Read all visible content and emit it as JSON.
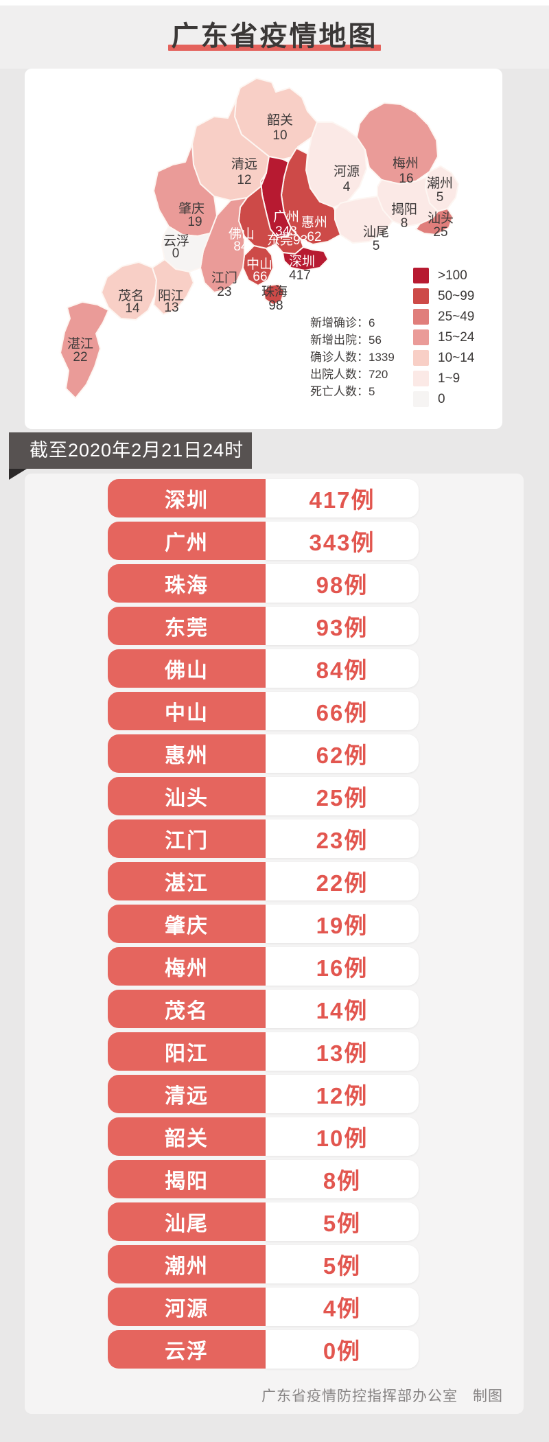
{
  "header": {
    "title": "广东省疫情地图",
    "accent_color": "#e4625c",
    "title_color": "#3b3837"
  },
  "map": {
    "band_colors": {
      "gt100": "#b71a31",
      "b50_99": "#cd4a48",
      "b25_49": "#e07e7b",
      "b15_24": "#ea9b98",
      "b10_14": "#f8cfc6",
      "b1_9": "#fbe9e6",
      "b0": "#f6f4f3"
    },
    "regions": [
      {
        "name": "韶关",
        "value": "10",
        "band": "b10_14"
      },
      {
        "name": "清远",
        "value": "12",
        "band": "b10_14"
      },
      {
        "name": "河源",
        "value": "4",
        "band": "b1_9"
      },
      {
        "name": "梅州",
        "value": "16",
        "band": "b15_24"
      },
      {
        "name": "潮州",
        "value": "5",
        "band": "b1_9"
      },
      {
        "name": "揭阳",
        "value": "8",
        "band": "b1_9"
      },
      {
        "name": "汕头",
        "value": "25",
        "band": "b25_49"
      },
      {
        "name": "汕尾",
        "value": "5",
        "band": "b1_9"
      },
      {
        "name": "惠州",
        "value": "62",
        "band": "b50_99"
      },
      {
        "name": "广州",
        "value": "343",
        "band": "gt100"
      },
      {
        "name": "东莞",
        "value": "93",
        "band": "b50_99"
      },
      {
        "name": "深圳",
        "value": "417",
        "band": "gt100"
      },
      {
        "name": "中山",
        "value": "66",
        "band": "b50_99"
      },
      {
        "name": "珠海",
        "value": "98",
        "band": "b50_99"
      },
      {
        "name": "佛山",
        "value": "84",
        "band": "b50_99"
      },
      {
        "name": "江门",
        "value": "23",
        "band": "b15_24"
      },
      {
        "name": "肇庆",
        "value": "19",
        "band": "b15_24"
      },
      {
        "name": "云浮",
        "value": "0",
        "band": "b0"
      },
      {
        "name": "茂名",
        "value": "14",
        "band": "b10_14"
      },
      {
        "name": "阳江",
        "value": "13",
        "band": "b10_14"
      },
      {
        "name": "湛江",
        "value": "22",
        "band": "b15_24"
      }
    ],
    "stats_lines": [
      "新增确诊：6",
      "新增出院：56",
      "确诊人数：1339",
      "出院人数：720",
      "死亡人数：5"
    ],
    "legend_items": [
      {
        "label": ">100",
        "band": "gt100"
      },
      {
        "label": "50~99",
        "band": "b50_99"
      },
      {
        "label": "25~49",
        "band": "b25_49"
      },
      {
        "label": "15~24",
        "band": "b15_24"
      },
      {
        "label": "10~14",
        "band": "b10_14"
      },
      {
        "label": "1~9",
        "band": "b1_9"
      },
      {
        "label": "0",
        "band": "b0"
      }
    ]
  },
  "banner": {
    "date_text": "截至2020年2月21日24时"
  },
  "table": {
    "cases_suffix": "例",
    "rows": [
      {
        "city": "深圳",
        "cases": "417例"
      },
      {
        "city": "广州",
        "cases": "343例"
      },
      {
        "city": "珠海",
        "cases": "98例"
      },
      {
        "city": "东莞",
        "cases": "93例"
      },
      {
        "city": "佛山",
        "cases": "84例"
      },
      {
        "city": "中山",
        "cases": "66例"
      },
      {
        "city": "惠州",
        "cases": "62例"
      },
      {
        "city": "汕头",
        "cases": "25例"
      },
      {
        "city": "江门",
        "cases": "23例"
      },
      {
        "city": "湛江",
        "cases": "22例"
      },
      {
        "city": "肇庆",
        "cases": "19例"
      },
      {
        "city": "梅州",
        "cases": "16例"
      },
      {
        "city": "茂名",
        "cases": "14例"
      },
      {
        "city": "阳江",
        "cases": "13例"
      },
      {
        "city": "清远",
        "cases": "12例"
      },
      {
        "city": "韶关",
        "cases": "10例"
      },
      {
        "city": "揭阳",
        "cases": "8例"
      },
      {
        "city": "汕尾",
        "cases": "5例"
      },
      {
        "city": "潮州",
        "cases": "5例"
      },
      {
        "city": "河源",
        "cases": "4例"
      },
      {
        "city": "云浮",
        "cases": "0例"
      }
    ],
    "row_color": "#e5655e"
  },
  "footer": {
    "credit": "广东省疫情防控指挥部办公室　制图"
  }
}
